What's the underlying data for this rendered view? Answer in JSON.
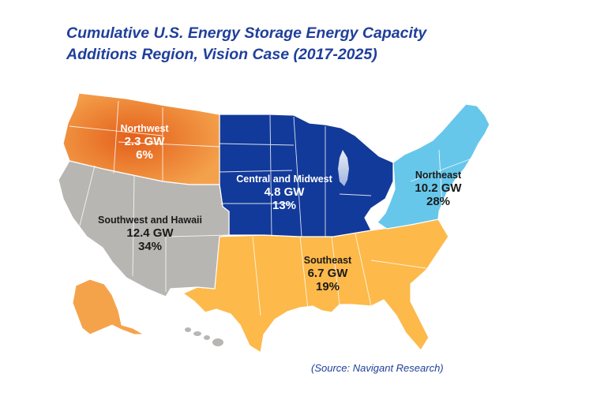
{
  "title": {
    "line1": "Cumulative U.S. Energy Storage Energy Capacity",
    "line2": "Additions Region, Vision Case (2017-2025)"
  },
  "regions": {
    "northwest": {
      "name": "Northwest",
      "capacity": "2.3 GW",
      "share": "6%",
      "color": "#f0903a"
    },
    "central_midwest": {
      "name": "Central and Midwest",
      "capacity": "4.8 GW",
      "share": "13%",
      "color": "#123a9a"
    },
    "northeast": {
      "name": "Northeast",
      "capacity": "10.2 GW",
      "share": "28%",
      "color": "#66c7ea"
    },
    "southwest_hawaii": {
      "name": "Southwest and Hawaii",
      "capacity": "12.4 GW",
      "share": "34%",
      "color": "#b8b6b3"
    },
    "southeast": {
      "name": "Southeast",
      "capacity": "6.7 GW",
      "share": "19%",
      "color": "#fdb94a"
    }
  },
  "source": "(Source: Navigant Research)"
}
